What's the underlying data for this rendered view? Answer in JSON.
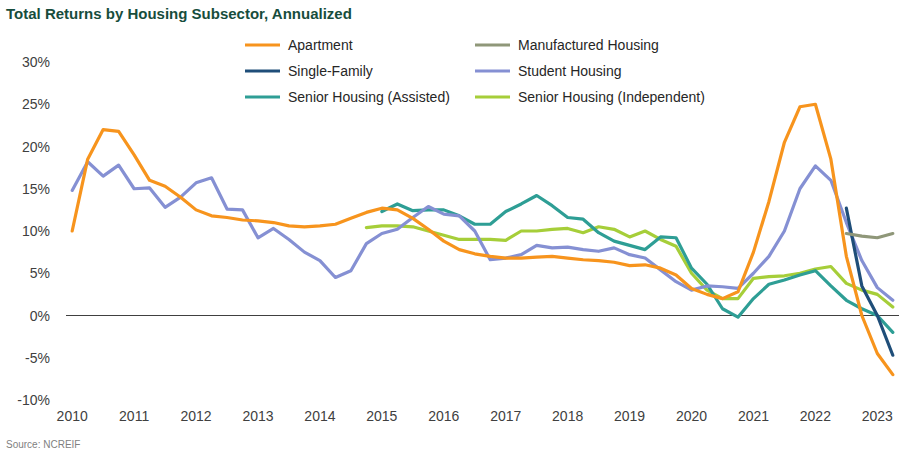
{
  "chart_data": {
    "type": "line",
    "title": "Total Returns by Housing Subsector, Annualized",
    "source": "Source: NCREIF",
    "x": [
      2010,
      2010.25,
      2010.5,
      2010.75,
      2011,
      2011.25,
      2011.5,
      2011.75,
      2012,
      2012.25,
      2012.5,
      2012.75,
      2013,
      2013.25,
      2013.5,
      2013.75,
      2014,
      2014.25,
      2014.5,
      2014.75,
      2015,
      2015.25,
      2015.5,
      2015.75,
      2016,
      2016.25,
      2016.5,
      2016.75,
      2017,
      2017.25,
      2017.5,
      2017.75,
      2018,
      2018.25,
      2018.5,
      2018.75,
      2019,
      2019.25,
      2019.5,
      2019.75,
      2020,
      2020.25,
      2020.5,
      2020.75,
      2021,
      2021.25,
      2021.5,
      2021.75,
      2022,
      2022.25,
      2022.5,
      2022.75,
      2023,
      2023.25
    ],
    "xlim": [
      2009.9,
      2023.35
    ],
    "xticks": [
      2010,
      2011,
      2012,
      2013,
      2014,
      2015,
      2016,
      2017,
      2018,
      2019,
      2020,
      2021,
      2022,
      2023
    ],
    "ylim": [
      -10,
      30
    ],
    "yticks": [
      {
        "value": -10,
        "label": "-10%"
      },
      {
        "value": -5,
        "label": "-5%"
      },
      {
        "value": 0,
        "label": "0%"
      },
      {
        "value": 5,
        "label": "5%"
      },
      {
        "value": 10,
        "label": "10%"
      },
      {
        "value": 15,
        "label": "15%"
      },
      {
        "value": 20,
        "label": "20%"
      },
      {
        "value": 25,
        "label": "25%"
      },
      {
        "value": 30,
        "label": "30%"
      }
    ],
    "grid": false,
    "legend": "top",
    "series": [
      {
        "name": "Apartment",
        "color": "#f7941d",
        "values": [
          10,
          18.5,
          22,
          21.8,
          19,
          16,
          15.3,
          14,
          12.5,
          11.8,
          11.6,
          11.3,
          11.2,
          11.0,
          10.6,
          10.5,
          10.6,
          10.8,
          11.5,
          12.2,
          12.7,
          12.5,
          11.5,
          10.2,
          8.8,
          7.8,
          7.3,
          7.0,
          6.8,
          6.8,
          6.9,
          7.0,
          6.8,
          6.6,
          6.5,
          6.3,
          5.9,
          6.0,
          5.6,
          4.8,
          3.2,
          2.5,
          2.0,
          2.8,
          7.5,
          13.5,
          20.5,
          24.7,
          25,
          18.5,
          7.0,
          0.0,
          -4.5,
          -7.0
        ]
      },
      {
        "name": "Manufactured Housing",
        "color": "#8f9779",
        "values": [
          null,
          null,
          null,
          null,
          null,
          null,
          null,
          null,
          null,
          null,
          null,
          null,
          null,
          null,
          null,
          null,
          null,
          null,
          null,
          null,
          null,
          null,
          null,
          null,
          null,
          null,
          null,
          null,
          null,
          null,
          null,
          null,
          null,
          null,
          null,
          null,
          null,
          null,
          null,
          null,
          null,
          null,
          null,
          null,
          null,
          null,
          null,
          null,
          null,
          null,
          9.7,
          9.4,
          9.2,
          9.7
        ]
      },
      {
        "name": "Single-Family",
        "color": "#1f4e79",
        "values": [
          null,
          null,
          null,
          null,
          null,
          null,
          null,
          null,
          null,
          null,
          null,
          null,
          null,
          null,
          null,
          null,
          null,
          null,
          null,
          null,
          null,
          null,
          null,
          null,
          null,
          null,
          null,
          null,
          null,
          null,
          null,
          null,
          null,
          null,
          null,
          null,
          null,
          null,
          null,
          null,
          null,
          null,
          null,
          null,
          null,
          null,
          null,
          null,
          null,
          null,
          12.7,
          3.5,
          0.0,
          -4.7
        ]
      },
      {
        "name": "Student Housing",
        "color": "#8590d3",
        "values": [
          14.8,
          18.2,
          16.5,
          17.8,
          15.0,
          15.1,
          12.8,
          14.0,
          15.7,
          16.3,
          12.6,
          12.5,
          9.2,
          10.3,
          9.0,
          7.5,
          6.5,
          4.5,
          5.3,
          8.5,
          9.7,
          10.2,
          11.6,
          12.9,
          12.0,
          11.8,
          10.0,
          6.6,
          6.8,
          7.2,
          8.3,
          8.0,
          8.1,
          7.8,
          7.6,
          8.0,
          7.2,
          6.8,
          5.4,
          4.0,
          3.0,
          3.5,
          3.4,
          3.2,
          5.0,
          7.0,
          10.0,
          15.0,
          17.7,
          16.0,
          11.0,
          6.5,
          3.3,
          1.8
        ]
      },
      {
        "name": "Senior Housing (Assisted)",
        "color": "#2e9e95",
        "values": [
          null,
          null,
          null,
          null,
          null,
          null,
          null,
          null,
          null,
          null,
          null,
          null,
          null,
          null,
          null,
          null,
          null,
          null,
          null,
          null,
          12.3,
          13.2,
          12.4,
          12.5,
          12.5,
          11.8,
          10.8,
          10.8,
          12.3,
          13.2,
          14.2,
          13.0,
          11.6,
          11.4,
          9.8,
          8.8,
          8.3,
          7.8,
          9.3,
          9.2,
          5.6,
          3.7,
          0.8,
          -0.2,
          2.0,
          3.7,
          4.2,
          4.8,
          5.3,
          3.5,
          1.8,
          0.8,
          0.0,
          -2.0
        ]
      },
      {
        "name": "Senior Housing (Independent)",
        "color": "#a6ce39",
        "values": [
          null,
          null,
          null,
          null,
          null,
          null,
          null,
          null,
          null,
          null,
          null,
          null,
          null,
          null,
          null,
          null,
          null,
          null,
          null,
          10.4,
          10.6,
          10.6,
          10.5,
          10.0,
          9.5,
          9.0,
          9.0,
          9.0,
          8.9,
          10.0,
          10.0,
          10.2,
          10.3,
          9.8,
          10.5,
          10.2,
          9.3,
          10.0,
          9.0,
          8.2,
          5.0,
          3.0,
          2.0,
          2.0,
          4.4,
          4.6,
          4.7,
          5.0,
          5.5,
          5.8,
          3.8,
          3.0,
          2.5,
          1.0
        ]
      }
    ]
  }
}
